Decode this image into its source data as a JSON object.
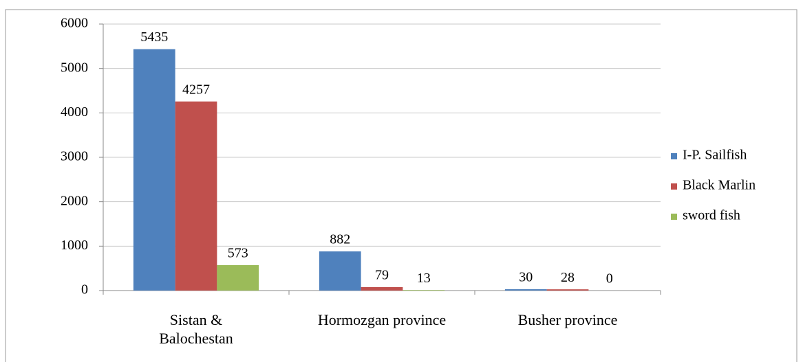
{
  "chart_data": {
    "type": "bar",
    "categories": [
      "Sistan &\nBalochestan",
      "Hormozgan province",
      "Busher province"
    ],
    "series": [
      {
        "name": "I-P. Sailfish",
        "color": "#4f81bd",
        "values": [
          5435,
          882,
          30
        ]
      },
      {
        "name": "Black Marlin",
        "color": "#c0504d",
        "values": [
          4257,
          79,
          28
        ]
      },
      {
        "name": "sword fish",
        "color": "#9bbb59",
        "values": [
          573,
          13,
          0
        ]
      }
    ],
    "ylim": [
      0,
      6000
    ],
    "yticks": [
      0,
      1000,
      2000,
      3000,
      4000,
      5000,
      6000
    ],
    "grid": true,
    "legend": "right"
  }
}
